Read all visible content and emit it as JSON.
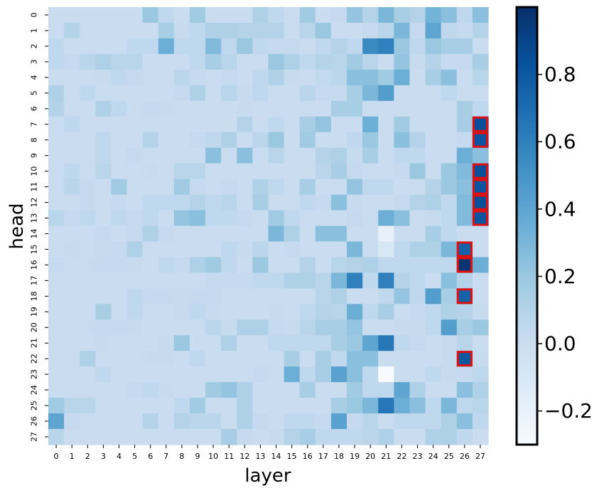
{
  "chart_data": {
    "type": "heatmap",
    "xlabel": "layer",
    "ylabel": "head",
    "x_categories": [
      "0",
      "1",
      "2",
      "3",
      "4",
      "5",
      "6",
      "7",
      "8",
      "9",
      "10",
      "11",
      "12",
      "13",
      "14",
      "15",
      "16",
      "17",
      "18",
      "19",
      "20",
      "21",
      "22",
      "23",
      "24",
      "25",
      "26",
      "27"
    ],
    "y_categories": [
      "0",
      "1",
      "2",
      "3",
      "4",
      "5",
      "6",
      "7",
      "8",
      "9",
      "10",
      "11",
      "12",
      "13",
      "14",
      "15",
      "16",
      "17",
      "18",
      "19",
      "20",
      "21",
      "22",
      "23",
      "24",
      "25",
      "26",
      "27"
    ],
    "colorbar": {
      "min": -0.3,
      "max": 1.0,
      "ticks": [
        -0.2,
        0.0,
        0.2,
        0.4,
        0.6,
        0.8
      ],
      "tick_labels": [
        "−0.2",
        "0.0",
        "0.2",
        "0.4",
        "0.6",
        "0.8"
      ],
      "colormap": "Blues"
    },
    "highlighted_cells": [
      {
        "head": 7,
        "layer": 27
      },
      {
        "head": 8,
        "layer": 27
      },
      {
        "head": 10,
        "layer": 27
      },
      {
        "head": 11,
        "layer": 27
      },
      {
        "head": 12,
        "layer": 27
      },
      {
        "head": 13,
        "layer": 27
      },
      {
        "head": 15,
        "layer": 26
      },
      {
        "head": 16,
        "layer": 26
      },
      {
        "head": 18,
        "layer": 26
      },
      {
        "head": 22,
        "layer": 26
      }
    ],
    "highlight_color": "#e01010",
    "values": [
      [
        0,
        0,
        0,
        0,
        0,
        0,
        0.2,
        0.05,
        0,
        0.18,
        0,
        0,
        0,
        0.12,
        0.05,
        0,
        0.18,
        0,
        0.03,
        0.22,
        0.1,
        0.3,
        0.15,
        0.1,
        0.32,
        0.25,
        0.05,
        0.25
      ],
      [
        0,
        0.1,
        0,
        0,
        0,
        0,
        0,
        0.15,
        0.02,
        0.05,
        0.12,
        0.12,
        0.1,
        0.1,
        0.1,
        0,
        0.08,
        0.2,
        0,
        0,
        0.03,
        0.08,
        0.3,
        0.03,
        0.4,
        0.05,
        0.03,
        0.1
      ],
      [
        0.05,
        0,
        0,
        0,
        0,
        0.05,
        0.05,
        0.35,
        0.05,
        0.05,
        0.28,
        0.05,
        0.2,
        0.05,
        0.03,
        0.03,
        0,
        0.05,
        0.1,
        0.05,
        0.55,
        0.6,
        0.2,
        0.05,
        0.2,
        0.15,
        0.15,
        0
      ],
      [
        0.05,
        0.03,
        0.08,
        0.12,
        0.08,
        0.08,
        0,
        0,
        0,
        0.05,
        0.15,
        0.08,
        0,
        0,
        0.2,
        0.12,
        0.05,
        0.1,
        0.08,
        0.18,
        0.08,
        0,
        0.22,
        0.02,
        0.1,
        0.03,
        0.03,
        0.15
      ],
      [
        0,
        0,
        0,
        0.02,
        0.05,
        0.03,
        0,
        0,
        0.07,
        0.03,
        0,
        0.03,
        0,
        0.05,
        0.12,
        0.02,
        0,
        0.04,
        0.07,
        0.25,
        0.25,
        0.18,
        0.35,
        0,
        0.15,
        0.25,
        0,
        0.08
      ],
      [
        0.12,
        0,
        0.05,
        0,
        0,
        0,
        0,
        0,
        0.03,
        0.12,
        0,
        0.08,
        0.02,
        0.05,
        0,
        0,
        0.07,
        0.03,
        0.03,
        0.15,
        0.3,
        0.45,
        0,
        0,
        0,
        0.05,
        0,
        0
      ],
      [
        0.1,
        0,
        0,
        0.12,
        0.05,
        0,
        0.03,
        0.02,
        0,
        0,
        0,
        0,
        0.02,
        0,
        0,
        0,
        0,
        0,
        0.15,
        0.15,
        0,
        0,
        0,
        0,
        0,
        0,
        0.15,
        0.05
      ],
      [
        0,
        0.05,
        0,
        0,
        0,
        0,
        0,
        0,
        0,
        0,
        0,
        0,
        0.1,
        0,
        0.05,
        0,
        0.15,
        0.22,
        0,
        0,
        0.35,
        0,
        0.18,
        0,
        0,
        0,
        0.15,
        0.85
      ],
      [
        0,
        0,
        0,
        0.05,
        0,
        0,
        0.1,
        0,
        0,
        0.03,
        0.05,
        0.12,
        0,
        0.07,
        0.2,
        0,
        0.18,
        0,
        0,
        0.05,
        0.2,
        0,
        0.25,
        0.1,
        0,
        0,
        0.03,
        0.82
      ],
      [
        0,
        0,
        0,
        0.05,
        0,
        0.03,
        0,
        0,
        0,
        0,
        0.25,
        0,
        0.25,
        0,
        0.08,
        0,
        0,
        0.1,
        0.12,
        0.02,
        0.15,
        0,
        0.05,
        0.05,
        0,
        0,
        0.35,
        0.25
      ],
      [
        0,
        0.05,
        0,
        0.08,
        0,
        0,
        0.02,
        0,
        0.08,
        0.08,
        0,
        0,
        0,
        0,
        0,
        0,
        0,
        0.07,
        0.15,
        0.03,
        0,
        0,
        0.03,
        0.2,
        0,
        0.2,
        0.28,
        0.85
      ],
      [
        0,
        0.07,
        0.03,
        0,
        0.18,
        0,
        0,
        0,
        0.18,
        0.03,
        0,
        0.03,
        0,
        0.12,
        0.05,
        0,
        0.15,
        0,
        0,
        0.22,
        0.05,
        0.05,
        0,
        0,
        0.1,
        0.2,
        0.25,
        0.82
      ],
      [
        0,
        0,
        0.03,
        0,
        0.03,
        0,
        0.05,
        0.05,
        0.05,
        0.1,
        0.05,
        0.08,
        0,
        0.15,
        0,
        0,
        0.05,
        0.03,
        0.25,
        0.02,
        0,
        0,
        0.03,
        0.1,
        0.12,
        0.05,
        0.28,
        0.85
      ],
      [
        0.08,
        0.03,
        0.05,
        0,
        0.05,
        0.03,
        0.05,
        0,
        0.22,
        0.25,
        0.05,
        0.05,
        0.03,
        0,
        0.18,
        0.05,
        0,
        0,
        0,
        0.03,
        0,
        0.35,
        0.25,
        0,
        0.02,
        0.05,
        0.28,
        0.82
      ],
      [
        0,
        0,
        0,
        0.03,
        0,
        0.03,
        0.12,
        0.03,
        0,
        0,
        0,
        0,
        0,
        0,
        0.3,
        0.12,
        0,
        0.25,
        0.25,
        0,
        0,
        -0.2,
        0,
        0,
        0.15,
        0.05,
        0,
        0
      ],
      [
        0,
        0.02,
        0,
        0.02,
        0.03,
        0.12,
        0,
        0,
        0,
        0,
        0,
        0.05,
        0.02,
        0.07,
        0,
        0.03,
        0,
        0,
        0,
        0.3,
        0,
        -0.1,
        0.05,
        0.12,
        0.12,
        0.3,
        0.75,
        0
      ],
      [
        0.03,
        0,
        0.02,
        0.03,
        0.03,
        0.02,
        0,
        0.05,
        0.03,
        0.12,
        0.18,
        0.05,
        0,
        0.2,
        0,
        0,
        0.1,
        0,
        0.08,
        0.1,
        0.12,
        0.05,
        0.05,
        0.05,
        0.05,
        0.05,
        0.98,
        0.35
      ],
      [
        0,
        0,
        0,
        0,
        0,
        0,
        0,
        0,
        0,
        0,
        0.03,
        0.03,
        0.03,
        0.05,
        0.05,
        0.12,
        0.12,
        0.08,
        0.3,
        0.6,
        0.05,
        0.6,
        0.1,
        0.05,
        0,
        0.25,
        0.1,
        0
      ],
      [
        0,
        0,
        0,
        0,
        0,
        0.05,
        0.03,
        0.03,
        0.02,
        0.03,
        0.03,
        0,
        0,
        0,
        0,
        0,
        0,
        0.08,
        0.12,
        0,
        0,
        0.05,
        0.22,
        0.05,
        0.45,
        0.15,
        0.75,
        0
      ],
      [
        0,
        0,
        0,
        0.15,
        0,
        0.05,
        0,
        0,
        0.02,
        0.05,
        0.02,
        0,
        0,
        0,
        0.02,
        0,
        0.05,
        0.1,
        0.08,
        0.35,
        0.05,
        0.15,
        0,
        0.03,
        0.05,
        0.12,
        0.1,
        0.02
      ],
      [
        0,
        0,
        0.02,
        0.03,
        0.03,
        0.02,
        0,
        0,
        0,
        0,
        0.07,
        0.02,
        0.12,
        0.12,
        0.03,
        0.02,
        0.08,
        0.15,
        0.15,
        0.22,
        0,
        0,
        0.02,
        0.02,
        0.05,
        0.45,
        0.15,
        0.2
      ],
      [
        0,
        0,
        0,
        0.02,
        0,
        0,
        0,
        0.02,
        0.2,
        0,
        0,
        0.12,
        0,
        0,
        0.05,
        0.05,
        0.05,
        0.05,
        0.15,
        0.2,
        0.4,
        0.65,
        0.05,
        0.03,
        0,
        0.02,
        0.08,
        0
      ],
      [
        0,
        0,
        0.12,
        0,
        0,
        0,
        0.02,
        0.02,
        0,
        0.05,
        0,
        0,
        0,
        0,
        0,
        0.15,
        0,
        0.15,
        0.05,
        0.25,
        0.25,
        0,
        0,
        0,
        0,
        0.02,
        0.8,
        0.02
      ],
      [
        0,
        0,
        0,
        0.05,
        0,
        0,
        0,
        0,
        0,
        0,
        0,
        0,
        0,
        0.03,
        0,
        0.35,
        0.05,
        0.15,
        0.42,
        0.25,
        0.05,
        -0.3,
        0,
        0,
        0.05,
        0.02,
        0.03,
        0.05
      ],
      [
        0,
        0,
        0,
        0,
        0,
        0.03,
        0.05,
        0.02,
        0,
        0,
        0.18,
        0.22,
        0.12,
        0,
        0,
        0,
        0.15,
        0,
        0,
        0.18,
        0.05,
        0.05,
        0.4,
        0.12,
        0,
        0,
        0.25,
        0.12
      ],
      [
        0.18,
        0.08,
        0.08,
        0,
        0,
        0,
        0,
        0,
        0.05,
        0.18,
        0,
        0,
        0.12,
        0,
        0,
        0,
        0,
        0,
        0.15,
        0.2,
        0.3,
        0.65,
        0.35,
        0.25,
        0.05,
        0.3,
        0.05,
        0.08
      ],
      [
        0.4,
        0.03,
        0,
        0,
        0,
        0,
        0.1,
        0,
        0.1,
        0.07,
        0.07,
        0,
        0.12,
        0.03,
        0,
        0.05,
        0.05,
        0.03,
        0.42,
        0.03,
        0.08,
        0,
        0.05,
        0.05,
        0.05,
        0.12,
        0.25,
        0.05
      ],
      [
        0.08,
        0,
        0,
        0,
        0,
        0,
        0,
        0,
        0,
        0,
        0,
        0.15,
        0.03,
        0,
        0.02,
        0.1,
        0.15,
        0.05,
        0.05,
        0.05,
        0.07,
        0.12,
        0,
        0,
        0.12,
        0.12,
        0.05,
        0
      ]
    ]
  }
}
